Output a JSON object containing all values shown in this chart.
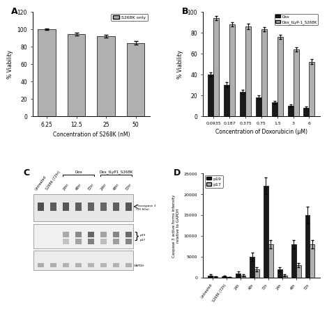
{
  "panel_A": {
    "categories": [
      "6.25",
      "12.5",
      "25",
      "50"
    ],
    "values": [
      100,
      94,
      92,
      84
    ],
    "errors": [
      1.0,
      1.5,
      1.5,
      2.0
    ],
    "bar_color": "#b0b0b0",
    "xlabel": "Concentration of S268K (nM)",
    "ylabel": "% Viability",
    "ylim": [
      0,
      120
    ],
    "yticks": [
      0,
      20,
      40,
      60,
      80,
      100,
      120
    ],
    "legend_label": "S268K only",
    "title": "A"
  },
  "panel_B": {
    "categories": [
      "0.0935",
      "0.187",
      "0.375",
      "0.75",
      "1.5",
      "3",
      "6"
    ],
    "dox_values": [
      40,
      30,
      23,
      18,
      13,
      10,
      8
    ],
    "dox_errors": [
      2.0,
      2.5,
      2.0,
      1.5,
      1.5,
      1.0,
      1.0
    ],
    "combo_values": [
      94,
      88,
      86,
      83,
      76,
      64,
      52
    ],
    "combo_errors": [
      2.0,
      2.0,
      2.5,
      2.0,
      2.0,
      2.0,
      2.5
    ],
    "dox_color": "#1a1a1a",
    "combo_color": "#b0b0b0",
    "xlabel": "Concentration of Doxorubicin (μM)",
    "ylabel": "% Viability",
    "ylim": [
      0,
      100
    ],
    "yticks": [
      0,
      20,
      40,
      60,
      80,
      100
    ],
    "legend_dox": "Dox",
    "legend_combo": "Dox_tLyP-1_S268K",
    "title": "B"
  },
  "panel_C": {
    "title": "C",
    "col_labels": [
      "Untreated",
      "S268K (72hr)",
      "24hr",
      "48hr",
      "72hr",
      "24hr",
      "48hr",
      "72hr"
    ],
    "bracket_label_1": "Dox",
    "bracket_label_2": "Dox_tLyP1_S268K"
  },
  "panel_D": {
    "title": "D",
    "categories": [
      "Untreated",
      "S268K (72h)",
      "24h",
      "48h",
      "72h",
      "24h",
      "48h",
      "72h"
    ],
    "p19_values": [
      500,
      300,
      1000,
      5000,
      22000,
      2000,
      8000,
      15000
    ],
    "p17_values": [
      200,
      100,
      500,
      2000,
      8000,
      500,
      3000,
      8000
    ],
    "p19_errors": [
      200,
      100,
      500,
      1000,
      2000,
      500,
      1000,
      2000
    ],
    "p17_errors": [
      100,
      50,
      200,
      500,
      1000,
      200,
      500,
      1000
    ],
    "p19_color": "#1a1a1a",
    "p17_color": "#b0b0b0",
    "ylabel": "Caspase 3 active forms intensity\nrelative to GAPDH",
    "ylim": [
      0,
      25000
    ],
    "yticks": [
      0,
      5000,
      10000,
      15000,
      20000,
      25000
    ],
    "legend_p19": "p19",
    "legend_p17": "p17"
  }
}
